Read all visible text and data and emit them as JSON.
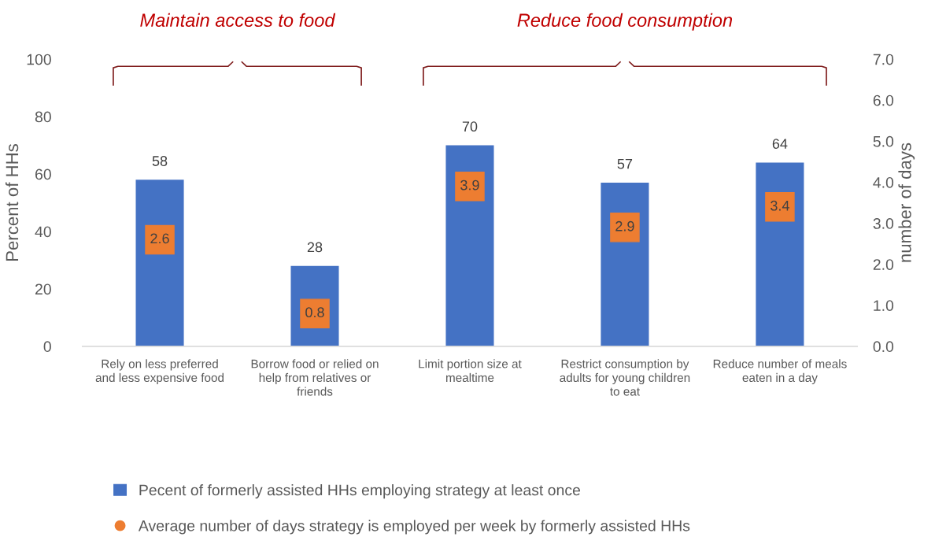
{
  "chart_data": {
    "type": "bar",
    "ylabel": "Percent of HHs",
    "y2label": "number of days",
    "categories": [
      "Rely on less preferred\nand less expensive food",
      "Borrow food or relied on\nhelp from relatives or\nfriends",
      "Limit portion size at\nmealtime",
      "Restrict consumption by\nadults for young children\nto eat",
      "Reduce number of meals\neaten in a day"
    ],
    "series": [
      {
        "name": "Pecent of formerly assisted HHs employing strategy at least once",
        "color": "#4472c4",
        "values": [
          58,
          28,
          70,
          57,
          64
        ]
      },
      {
        "name": "Average number of days strategy is employed per week by formerly assisted HHs",
        "type": "scatter",
        "axis": "y2",
        "marker": "square",
        "color": "#ed7d31",
        "values": [
          2.6,
          0.8,
          3.9,
          2.9,
          3.4
        ]
      }
    ],
    "ylim": [
      0,
      100
    ],
    "yticks": [
      0,
      20,
      40,
      60,
      80,
      100
    ],
    "y2lim": [
      0,
      7
    ],
    "y2ticks": [
      {
        "value": 0,
        "label": "0.0"
      },
      {
        "value": 1,
        "label": "1.0"
      },
      {
        "value": 2,
        "label": "2.0"
      },
      {
        "value": 3,
        "label": "3.0"
      },
      {
        "value": 4,
        "label": "4.0"
      },
      {
        "value": 5,
        "label": "5.0"
      },
      {
        "value": 6,
        "label": "6.0"
      },
      {
        "value": 7,
        "label": "7.0"
      }
    ],
    "data_labels": true,
    "grid": false,
    "legend": "bottom",
    "annotations": [
      "Maintain access to food",
      "Reduce food consumption"
    ]
  }
}
